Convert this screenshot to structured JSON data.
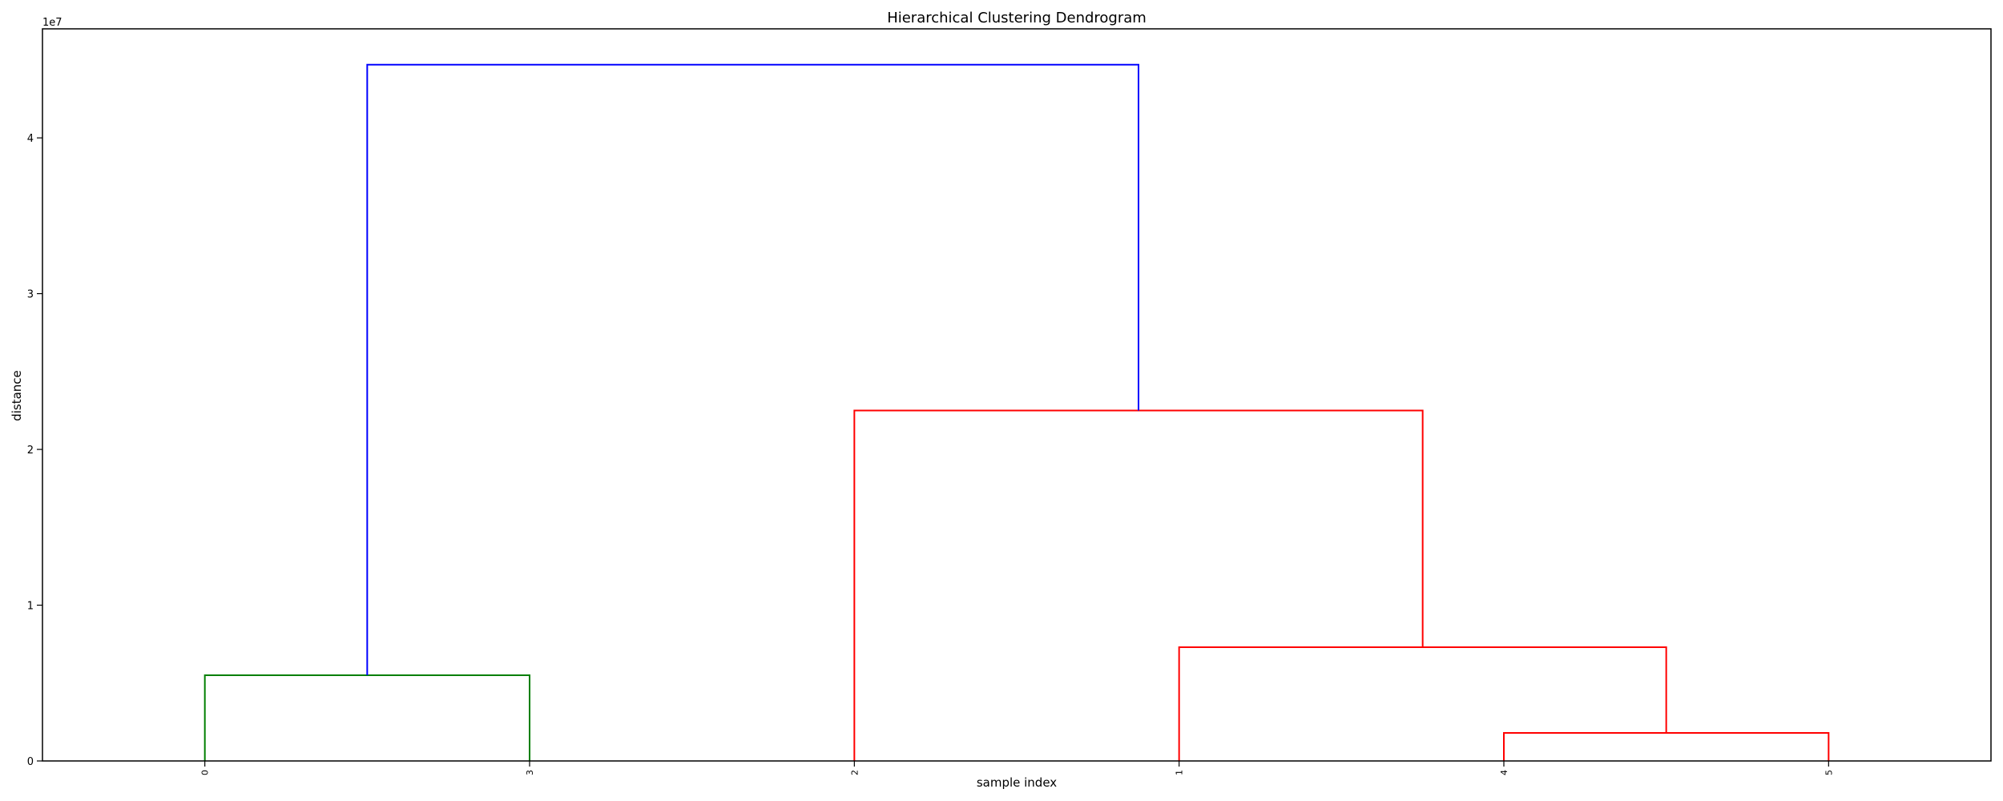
{
  "chart_data": {
    "type": "dendrogram",
    "title": "Hierarchical Clustering Dendrogram",
    "xlabel": "sample index",
    "ylabel": "distance",
    "y_offset_label": "1e7",
    "ylim": [
      0,
      47000000
    ],
    "yticks": [
      0,
      10000000,
      20000000,
      30000000,
      40000000
    ],
    "ytick_labels": [
      "0",
      "1",
      "2",
      "3",
      "4"
    ],
    "leaves": [
      "0",
      "3",
      "2",
      "1",
      "4",
      "5"
    ],
    "links": [
      {
        "name": "merge-0-3",
        "left": "0",
        "right": "3",
        "height": 5500000,
        "color": "#007f00"
      },
      {
        "name": "merge-4-5",
        "left": "4",
        "right": "5",
        "height": 1800000,
        "color": "#ff0000"
      },
      {
        "name": "merge-1-45",
        "left": "1",
        "right": "merge-4-5",
        "height": 7300000,
        "color": "#ff0000"
      },
      {
        "name": "merge-2-145",
        "left": "2",
        "right": "merge-1-45",
        "height": 22500000,
        "color": "#ff0000"
      },
      {
        "name": "merge-root",
        "left": "merge-0-3",
        "right": "merge-2-145",
        "height": 44700000,
        "color": "#0000ff"
      }
    ],
    "grid": false,
    "legend": "none"
  }
}
